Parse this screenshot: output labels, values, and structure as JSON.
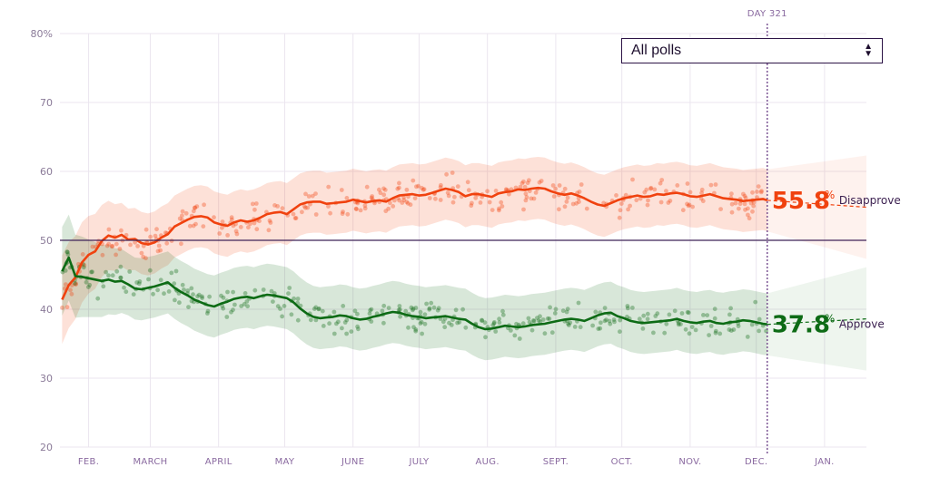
{
  "chart_data": {
    "type": "line",
    "title": "",
    "xlabel": "",
    "ylabel": "",
    "ylim": [
      20,
      80
    ],
    "y_ticks": [
      "80%",
      "70",
      "60",
      "50",
      "40",
      "30",
      "20"
    ],
    "y_tick_values": [
      80,
      70,
      60,
      50,
      40,
      30,
      20
    ],
    "x_ticks": [
      "FEB.",
      "MARCH",
      "APRIL",
      "MAY",
      "JUNE",
      "JULY",
      "AUG.",
      "SEPT.",
      "OCT.",
      "NOV.",
      "DEC.",
      "JAN."
    ],
    "x_tick_days": [
      13,
      41,
      72,
      102,
      133,
      163,
      194,
      225,
      255,
      286,
      316,
      347
    ],
    "xlim_days": [
      0,
      366
    ],
    "reference_line": 50,
    "current_day_label": "DAY 321",
    "current_day": 321,
    "grid": true,
    "series": [
      {
        "name": "Disapprove",
        "color": "#f0420f",
        "current_value": "55.8",
        "current_value_unit": "%",
        "x_days": [
          1,
          4,
          7,
          10,
          13,
          16,
          19,
          22,
          25,
          28,
          31,
          34,
          37,
          40,
          43,
          46,
          49,
          52,
          55,
          58,
          61,
          64,
          67,
          70,
          73,
          76,
          79,
          82,
          85,
          88,
          91,
          94,
          97,
          100,
          103,
          106,
          109,
          112,
          115,
          118,
          121,
          124,
          127,
          130,
          133,
          136,
          139,
          142,
          145,
          148,
          151,
          154,
          157,
          160,
          163,
          166,
          169,
          172,
          175,
          178,
          181,
          184,
          187,
          190,
          193,
          196,
          199,
          202,
          205,
          208,
          211,
          214,
          217,
          220,
          223,
          226,
          229,
          232,
          235,
          238,
          241,
          244,
          247,
          250,
          253,
          256,
          259,
          262,
          265,
          268,
          271,
          274,
          277,
          280,
          283,
          286,
          289,
          292,
          295,
          298,
          301,
          304,
          307,
          310,
          313,
          316,
          319,
          321
        ],
        "values": [
          41.4,
          43.5,
          44.6,
          46.8,
          47.9,
          48.4,
          49.9,
          50.7,
          50.4,
          50.8,
          50.1,
          50.2,
          49.6,
          49.4,
          49.7,
          50.4,
          50.9,
          52.0,
          52.5,
          53.0,
          53.4,
          53.5,
          53.3,
          52.6,
          52.3,
          52.1,
          52.6,
          52.9,
          52.7,
          52.9,
          53.3,
          53.8,
          54.0,
          54.1,
          53.8,
          54.5,
          55.2,
          55.5,
          55.6,
          55.6,
          55.3,
          55.4,
          55.5,
          55.6,
          55.9,
          55.7,
          55.5,
          55.7,
          55.8,
          55.6,
          56.1,
          56.5,
          56.6,
          56.7,
          56.5,
          56.6,
          56.9,
          57.2,
          57.5,
          57.3,
          57.0,
          56.4,
          56.7,
          56.7,
          56.5,
          56.3,
          56.8,
          57.0,
          57.1,
          57.4,
          57.3,
          57.5,
          57.6,
          57.5,
          57.1,
          56.8,
          56.6,
          56.8,
          56.5,
          56.1,
          55.6,
          55.2,
          55.0,
          55.4,
          55.8,
          56.1,
          56.3,
          56.5,
          56.3,
          56.4,
          56.7,
          56.6,
          56.8,
          56.9,
          56.7,
          56.4,
          56.3,
          56.5,
          56.7,
          56.4,
          56.1,
          56.0,
          55.9,
          55.7,
          55.8,
          55.9,
          56.0,
          55.8
        ],
        "projection_end": 54.8
      },
      {
        "name": "Approve",
        "color": "#0d6b15",
        "current_value": "37.8",
        "current_value_unit": "%",
        "x_days": [
          1,
          4,
          7,
          10,
          13,
          16,
          19,
          22,
          25,
          28,
          31,
          34,
          37,
          40,
          43,
          46,
          49,
          52,
          55,
          58,
          61,
          64,
          67,
          70,
          73,
          76,
          79,
          82,
          85,
          88,
          91,
          94,
          97,
          100,
          103,
          106,
          109,
          112,
          115,
          118,
          121,
          124,
          127,
          130,
          133,
          136,
          139,
          142,
          145,
          148,
          151,
          154,
          157,
          160,
          163,
          166,
          169,
          172,
          175,
          178,
          181,
          184,
          187,
          190,
          193,
          196,
          199,
          202,
          205,
          208,
          211,
          214,
          217,
          220,
          223,
          226,
          229,
          232,
          235,
          238,
          241,
          244,
          247,
          250,
          253,
          256,
          259,
          262,
          265,
          268,
          271,
          274,
          277,
          280,
          283,
          286,
          289,
          292,
          295,
          298,
          301,
          304,
          307,
          310,
          313,
          316,
          319,
          321
        ],
        "values": [
          45.5,
          47.5,
          44.8,
          44.7,
          44.5,
          44.3,
          44.1,
          44.3,
          44.0,
          44.1,
          43.6,
          43.0,
          42.9,
          43.1,
          43.3,
          43.6,
          43.9,
          43.1,
          42.5,
          42.0,
          41.4,
          41.0,
          40.6,
          40.4,
          40.8,
          41.1,
          41.5,
          41.7,
          41.8,
          41.6,
          41.9,
          42.1,
          42.0,
          41.8,
          41.6,
          41.0,
          40.1,
          39.4,
          38.9,
          38.7,
          38.8,
          38.9,
          39.1,
          39.0,
          38.7,
          38.5,
          38.6,
          38.9,
          39.1,
          39.4,
          39.6,
          39.5,
          39.2,
          39.0,
          38.9,
          38.7,
          38.8,
          38.9,
          39.0,
          38.8,
          38.6,
          38.5,
          37.9,
          37.4,
          37.1,
          37.2,
          37.4,
          37.6,
          37.5,
          37.4,
          37.5,
          37.7,
          37.8,
          37.9,
          38.1,
          38.3,
          38.5,
          38.6,
          38.5,
          38.3,
          38.7,
          39.1,
          39.4,
          39.5,
          39.0,
          38.7,
          38.3,
          38.1,
          38.0,
          38.1,
          38.2,
          38.3,
          38.4,
          38.6,
          38.3,
          38.1,
          38.0,
          38.2,
          38.3,
          38.0,
          37.9,
          38.1,
          38.2,
          38.4,
          38.3,
          38.1,
          37.9,
          37.8
        ],
        "projection_end": 38.6
      }
    ]
  },
  "selector": {
    "label": "All polls",
    "arrows_icon": "sort-arrows-icon"
  }
}
